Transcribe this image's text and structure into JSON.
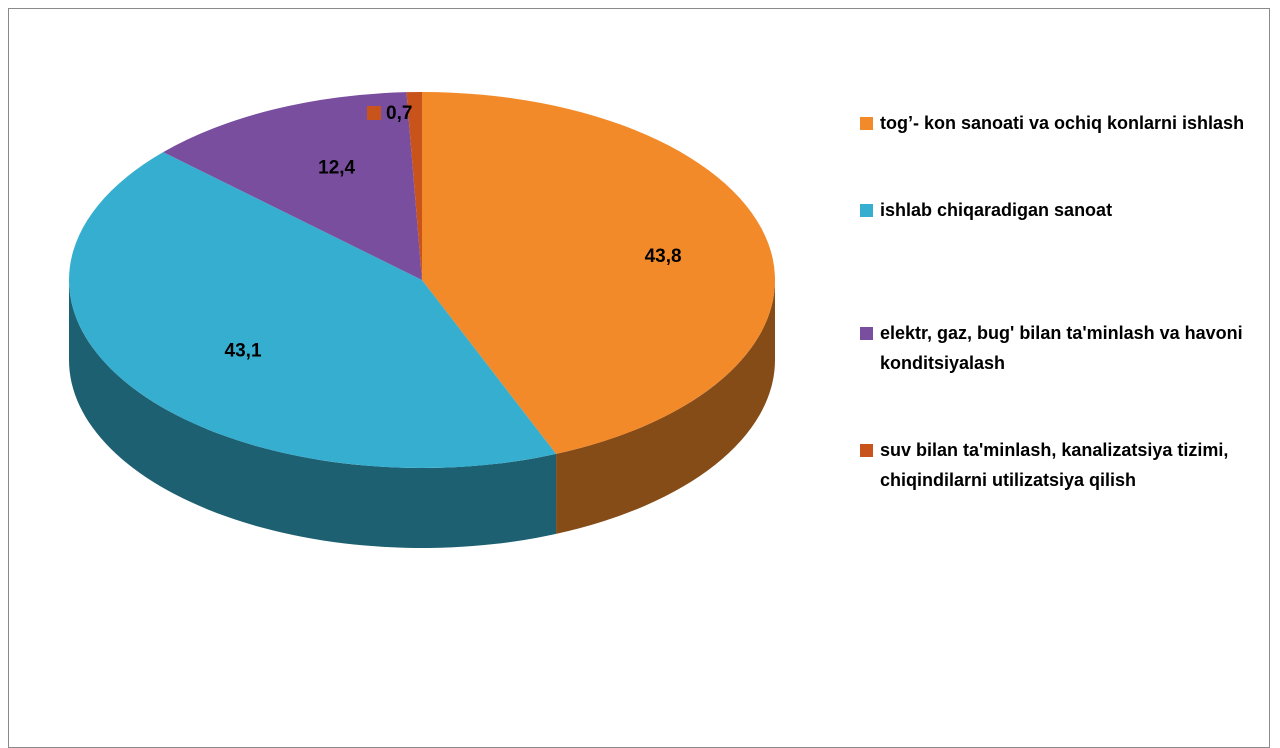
{
  "chart_data": {
    "type": "pie",
    "categories": [
      "tog’- kon sanoati va ochiq konlarni ishlash",
      "ishlab chiqaradigan  sanoat",
      "elektr, gaz, bug'  bilan ta'minlash va havoni konditsiyalash",
      "suv bilan ta'minlash, kanalizatsiya tizimi, chiqindilarni utilizatsiya qilish"
    ],
    "values": [
      43.8,
      43.1,
      12.4,
      0.7
    ],
    "value_labels": [
      "43,8",
      "43,1",
      "12,4",
      "0,7"
    ],
    "colors": [
      "#F28A2A",
      "#35AED0",
      "#7A4E9E",
      "#C8541B"
    ],
    "legend": "right"
  }
}
